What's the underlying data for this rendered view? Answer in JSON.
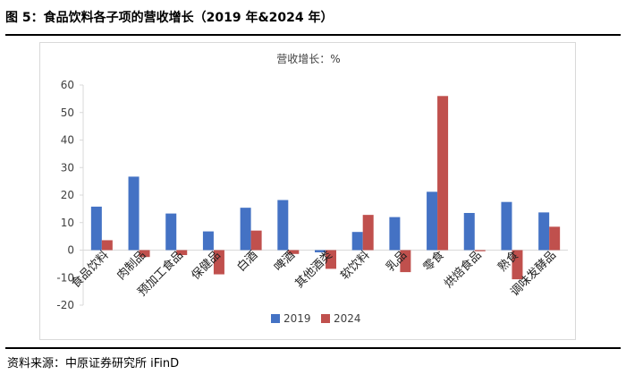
{
  "figure": {
    "title": "图 5：食品饮料各子项的营收增长（2019 年&2024 年）",
    "source": "资料来源：中原证券研究所 iFinD"
  },
  "colors": {
    "s2019": "#4472c4",
    "s2024": "#c0504d",
    "axis": "#d9d9d9",
    "text": "#404040"
  },
  "chart_data": {
    "type": "bar",
    "title": "营收增长：%",
    "xlabel": "",
    "ylabel": "",
    "ylim": [
      -20,
      60
    ],
    "yticks": [
      -20,
      -10,
      0,
      10,
      20,
      30,
      40,
      50,
      60
    ],
    "ytick_labels": [
      "-20",
      "-10",
      "0",
      "10",
      "20",
      "30",
      "40",
      "50",
      "60"
    ],
    "grid": false,
    "legend": "bottom-center",
    "categories": [
      "食品饮料",
      "肉制品",
      "预加工食品",
      "保健品",
      "白酒",
      "啤酒",
      "其他酒类",
      "软饮料",
      "乳品",
      "零食",
      "烘焙食品",
      "熟食",
      "调味发酵品"
    ],
    "series": [
      {
        "name": "2019",
        "values": [
          15.8,
          26.7,
          13.3,
          6.8,
          15.4,
          18.2,
          -0.8,
          6.6,
          12.0,
          21.2,
          13.5,
          17.5,
          13.7
        ]
      },
      {
        "name": "2024",
        "values": [
          3.6,
          -2.5,
          -1.8,
          -8.8,
          7.1,
          -1.4,
          -6.8,
          12.8,
          -8.0,
          56.0,
          -0.4,
          -10.6,
          8.5
        ]
      }
    ]
  }
}
